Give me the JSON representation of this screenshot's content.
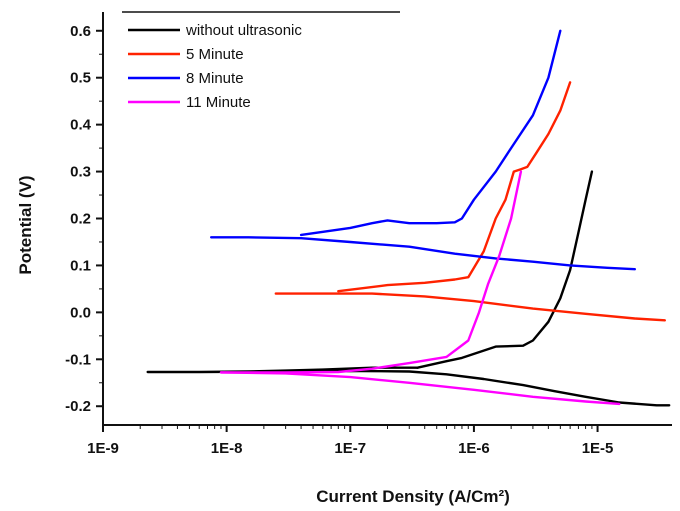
{
  "chart_data": {
    "type": "line",
    "xlabel": "Current Density (A/Cm²)",
    "ylabel": "Potential (V)",
    "xscale": "log",
    "xlim": [
      1e-09,
      4e-05
    ],
    "ylim": [
      -0.24,
      0.64
    ],
    "x_ticks": [
      {
        "value": 1e-09,
        "label": "1E-9"
      },
      {
        "value": 1e-08,
        "label": "1E-8"
      },
      {
        "value": 1e-07,
        "label": "1E-7"
      },
      {
        "value": 1e-06,
        "label": "1E-6"
      },
      {
        "value": 1e-05,
        "label": "1E-5"
      }
    ],
    "y_ticks": [
      {
        "value": -0.2,
        "label": "-0.2"
      },
      {
        "value": -0.1,
        "label": "-0.1"
      },
      {
        "value": 0.0,
        "label": "0.0"
      },
      {
        "value": 0.1,
        "label": "0.1"
      },
      {
        "value": 0.2,
        "label": "0.2"
      },
      {
        "value": 0.3,
        "label": "0.3"
      },
      {
        "value": 0.4,
        "label": "0.4"
      },
      {
        "value": 0.5,
        "label": "0.5"
      },
      {
        "value": 0.6,
        "label": "0.6"
      }
    ],
    "legend_position": "top-left",
    "series": [
      {
        "name": "without ultrasonic",
        "color": "#000000",
        "x": [
          3.5e-07,
          1.5e-07,
          6e-08,
          3e-08,
          1.5e-08,
          6e-09,
          2.3e-09,
          6e-09,
          3e-08,
          1.2e-07,
          3e-07,
          6e-07,
          1.2e-06,
          2.5e-06,
          4.5e-06,
          8e-06,
          1.5e-05,
          3e-05,
          3.8e-05
        ],
        "y": [
          -0.118,
          -0.118,
          -0.122,
          -0.124,
          -0.126,
          -0.127,
          -0.127,
          -0.127,
          -0.126,
          -0.125,
          -0.126,
          -0.132,
          -0.142,
          -0.155,
          -0.168,
          -0.18,
          -0.192,
          -0.198,
          -0.198
        ]
      },
      {
        "name": "without ultrasonic",
        "color": "#000000",
        "x": [
          3.5e-07,
          6e-07,
          8e-07,
          1.5e-06,
          2.5e-06,
          3e-06,
          4e-06,
          5e-06,
          6e-06,
          7e-06,
          8e-06,
          9e-06
        ],
        "y": [
          -0.118,
          -0.104,
          -0.097,
          -0.073,
          -0.071,
          -0.06,
          -0.02,
          0.03,
          0.09,
          0.17,
          0.24,
          0.3
        ]
      },
      {
        "name": "5 Minute",
        "color": "#ff2200",
        "x": [
          2.5e-08,
          6e-08,
          1.5e-07,
          4e-07,
          1e-06,
          3e-06,
          8e-06,
          2e-05,
          3.5e-05
        ],
        "y": [
          0.04,
          0.04,
          0.04,
          0.034,
          0.024,
          0.008,
          -0.003,
          -0.013,
          -0.017
        ]
      },
      {
        "name": "5 Minute",
        "color": "#ff2200",
        "x": [
          8e-08,
          2e-07,
          4e-07,
          7e-07,
          9e-07,
          1.2e-06,
          1.5e-06,
          1.8e-06,
          2.1e-06,
          2.4e-06,
          2.7e-06,
          3.2e-06,
          4e-06,
          5e-06,
          6e-06
        ],
        "y": [
          0.045,
          0.058,
          0.063,
          0.07,
          0.075,
          0.13,
          0.2,
          0.24,
          0.3,
          0.305,
          0.31,
          0.34,
          0.38,
          0.43,
          0.49
        ]
      },
      {
        "name": "8 Minute",
        "color": "#0000ff",
        "x": [
          7.5e-09,
          1.5e-08,
          4e-08,
          1e-07,
          3e-07,
          7e-07,
          1.5e-06,
          3e-06,
          6e-06,
          1.2e-05,
          2e-05
        ],
        "y": [
          0.16,
          0.16,
          0.158,
          0.15,
          0.14,
          0.125,
          0.115,
          0.108,
          0.1,
          0.095,
          0.092
        ]
      },
      {
        "name": "8 Minute",
        "color": "#0000ff",
        "x": [
          4e-08,
          1e-07,
          1.5e-07,
          2e-07,
          3e-07,
          5e-07,
          7e-07,
          8e-07,
          1e-06,
          1.5e-06,
          2e-06,
          3e-06,
          4e-06,
          5e-06
        ],
        "y": [
          0.165,
          0.18,
          0.19,
          0.196,
          0.19,
          0.19,
          0.192,
          0.2,
          0.24,
          0.3,
          0.35,
          0.42,
          0.5,
          0.6
        ]
      },
      {
        "name": "11 Minute",
        "color": "#ff00ff",
        "x": [
          9e-09,
          3e-08,
          1e-07,
          3e-07,
          1e-06,
          3e-06,
          8e-06,
          1.5e-05
        ],
        "y": [
          -0.128,
          -0.13,
          -0.138,
          -0.15,
          -0.165,
          -0.18,
          -0.19,
          -0.195
        ]
      },
      {
        "name": "11 Minute",
        "color": "#ff00ff",
        "x": [
          9e-09,
          3e-08,
          8e-08,
          1.5e-07,
          3e-07,
          6e-07,
          9e-07,
          1.1e-06,
          1.3e-06,
          1.6e-06,
          2e-06,
          2.4e-06
        ],
        "y": [
          -0.128,
          -0.128,
          -0.127,
          -0.12,
          -0.108,
          -0.095,
          -0.06,
          0.0,
          0.06,
          0.12,
          0.2,
          0.3
        ]
      }
    ],
    "legend": [
      {
        "name": "without ultrasonic",
        "color": "#000000"
      },
      {
        "name": "5 Minute",
        "color": "#ff2200"
      },
      {
        "name": "8 Minute",
        "color": "#0000ff"
      },
      {
        "name": "11 Minute",
        "color": "#ff00ff"
      }
    ]
  }
}
